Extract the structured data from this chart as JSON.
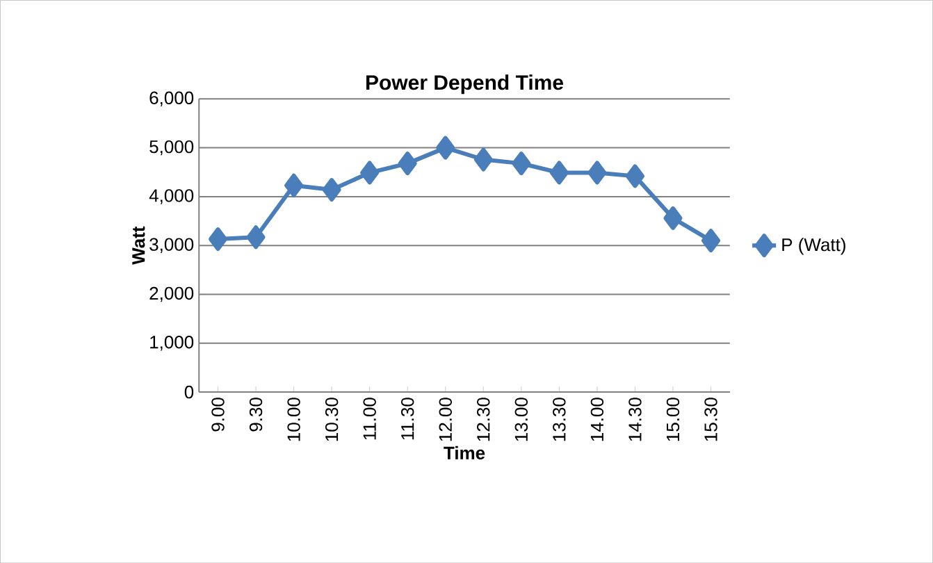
{
  "chart_data": {
    "type": "line",
    "title": "Power Depend Time",
    "xlabel": "Time",
    "ylabel": "Watt",
    "categories": [
      "9.00",
      "9.30",
      "10.00",
      "10.30",
      "11.00",
      "11.30",
      "12.00",
      "12.30",
      "13.00",
      "13.30",
      "14.00",
      "14.30",
      "15.00",
      "15.30"
    ],
    "series": [
      {
        "name": "P (Watt)",
        "color": "#4a7ebb",
        "values": [
          3130,
          3170,
          4230,
          4140,
          4490,
          4680,
          5000,
          4760,
          4680,
          4490,
          4490,
          4420,
          3560,
          3100
        ]
      }
    ],
    "ylim": [
      0,
      6000
    ],
    "yticks": [
      {
        "value": 0,
        "label": "0"
      },
      {
        "value": 1000,
        "label": "1,000"
      },
      {
        "value": 2000,
        "label": "2,000"
      },
      {
        "value": 3000,
        "label": "3,000"
      },
      {
        "value": 4000,
        "label": "4,000"
      },
      {
        "value": 5000,
        "label": "5,000"
      },
      {
        "value": 6000,
        "label": "6,000"
      }
    ],
    "grid": "y",
    "legend": "right",
    "marker": "diamond",
    "line_style": "solid"
  }
}
